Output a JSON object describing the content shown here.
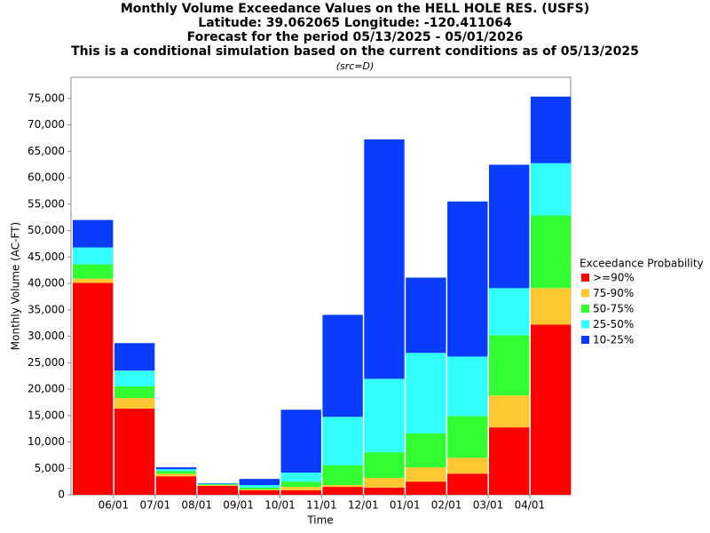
{
  "chart_data": {
    "type": "stacked_bar",
    "title": "Monthly Volume Exceedance Values on the HELL HOLE RES. (USFS)",
    "subtitles": [
      "Latitude: 39.062065 Longitude: -120.411064",
      "Forecast for the period 05/13/2025 - 05/01/2026",
      "This is a conditional simulation based on the current conditions as of 05/13/2025"
    ],
    "source": "(src=D)",
    "x_label": "Time",
    "y_label": "Monthly Volume (AC-FT)",
    "legend_title": "Exceedance Probability",
    "xticks": [
      "06/01",
      "07/01",
      "08/01",
      "09/01",
      "10/01",
      "11/01",
      "12/01",
      "01/01",
      "02/01",
      "03/01",
      "04/01"
    ],
    "ylim": [
      0,
      79000
    ],
    "yticks": [
      0,
      {
        "value": 5000,
        "label": "5,000"
      },
      {
        "value": 10000,
        "label": "10,000"
      },
      {
        "value": 15000,
        "label": "15,000"
      },
      {
        "value": 20000,
        "label": "20,000"
      },
      {
        "value": 25000,
        "label": "25,000"
      },
      {
        "value": 30000,
        "label": "30,000"
      },
      {
        "value": 35000,
        "label": "35,000"
      },
      {
        "value": 40000,
        "label": "40,000"
      },
      {
        "value": 45000,
        "label": "45,000"
      },
      {
        "value": 50000,
        "label": "50,000"
      },
      {
        "value": 55000,
        "label": "55,000"
      },
      {
        "value": 60000,
        "label": "60,000"
      },
      {
        "value": 65000,
        "label": "65,000"
      },
      {
        "value": 70000,
        "label": "70,000"
      },
      {
        "value": 75000,
        "label": "75,000"
      }
    ],
    "series": [
      {
        "name": ">=90%",
        "color": "#ff0000",
        "values": [
          40100,
          16300,
          3500,
          1700,
          850,
          850,
          1500,
          1350,
          2500,
          4000,
          12750,
          32200
        ]
      },
      {
        "name": "75-90%",
        "color": "#ffc832",
        "values": [
          800,
          2000,
          500,
          150,
          150,
          650,
          350,
          1850,
          2700,
          3000,
          6050,
          6900
        ]
      },
      {
        "name": "50-75%",
        "color": "#32ff32",
        "values": [
          2700,
          2200,
          500,
          150,
          350,
          1000,
          3700,
          4850,
          6400,
          7900,
          11400,
          13750
        ]
      },
      {
        "name": "25-50%",
        "color": "#32ffff",
        "values": [
          3200,
          3000,
          350,
          100,
          500,
          1700,
          9200,
          13900,
          15250,
          11250,
          8900,
          9900
        ]
      },
      {
        "name": "10-25%",
        "color": "#0a3cff",
        "values": [
          5200,
          5200,
          350,
          100,
          1150,
          11900,
          19300,
          45300,
          14250,
          29350,
          23350,
          12600
        ]
      }
    ]
  }
}
